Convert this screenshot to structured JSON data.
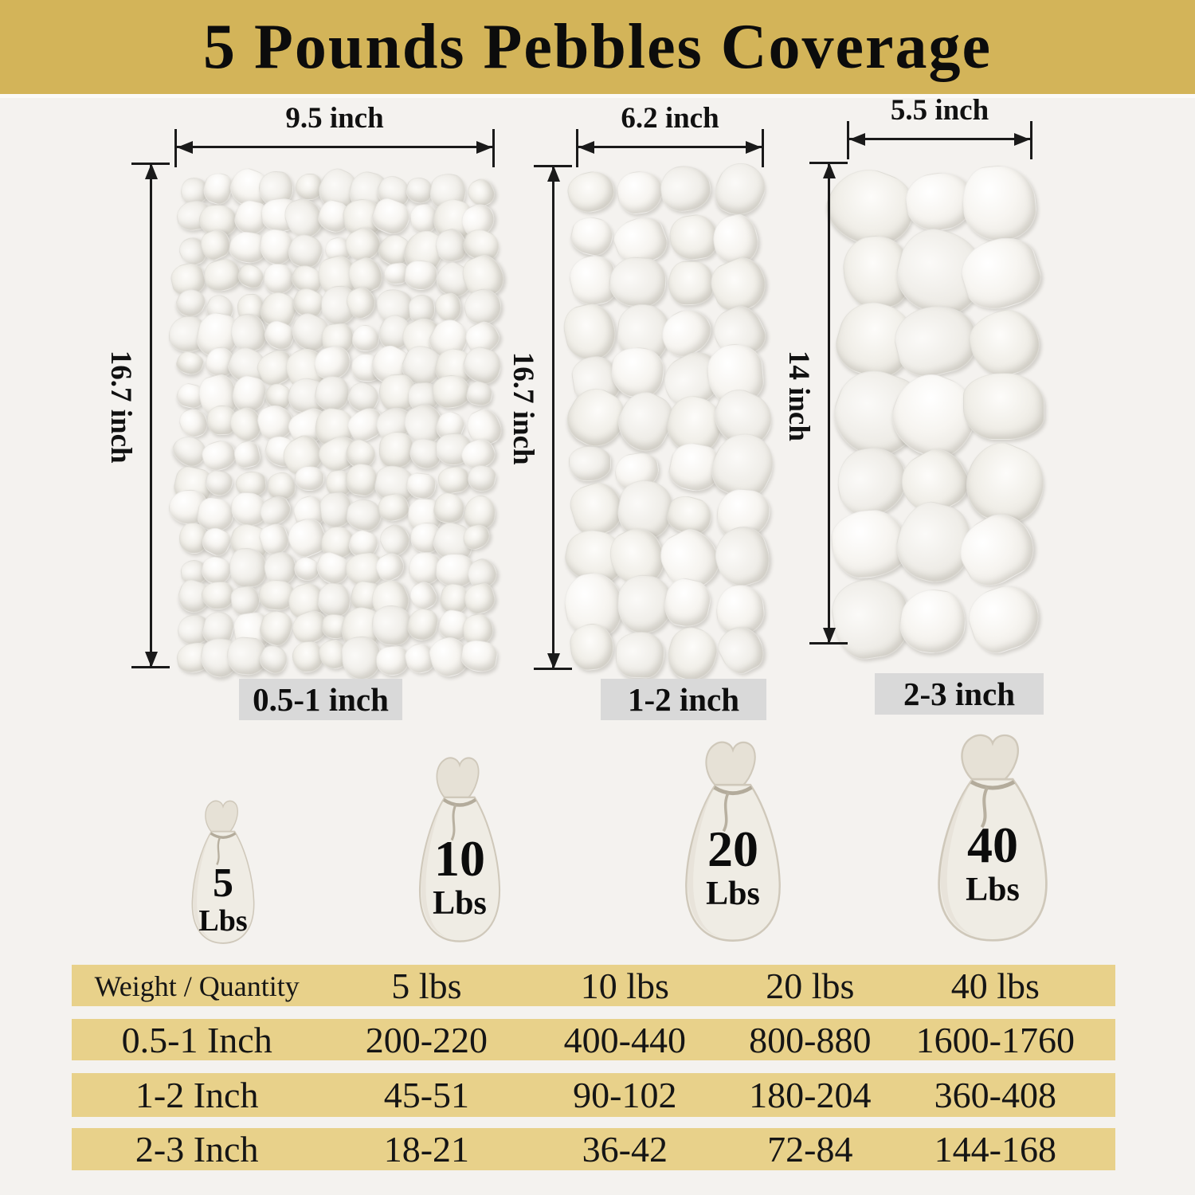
{
  "title": "5 Pounds Pebbles Coverage",
  "panels": [
    {
      "name": "small",
      "width_label": "9.5 inch",
      "height_label": "16.7 inch",
      "size_label": "0.5-1 inch"
    },
    {
      "name": "medium",
      "width_label": "6.2 inch",
      "height_label": "16.7 inch",
      "size_label": "1-2 inch"
    },
    {
      "name": "large",
      "width_label": "5.5 inch",
      "height_label": "14 inch",
      "size_label": "2-3 inch"
    }
  ],
  "bags": [
    {
      "weight": "5",
      "unit": "Lbs"
    },
    {
      "weight": "10",
      "unit": "Lbs"
    },
    {
      "weight": "20",
      "unit": "Lbs"
    },
    {
      "weight": "40",
      "unit": "Lbs"
    }
  ],
  "table": {
    "header": {
      "col0": "Weight / Quantity",
      "col1": "5 lbs",
      "col2": "10 lbs",
      "col3": "20 lbs",
      "col4": "40 lbs"
    },
    "rows": [
      {
        "col0": "0.5-1 Inch",
        "col1": "200-220",
        "col2": "400-440",
        "col3": "800-880",
        "col4": "1600-1760"
      },
      {
        "col0": "1-2 Inch",
        "col1": "45-51",
        "col2": "90-102",
        "col3": "180-204",
        "col4": "360-408"
      },
      {
        "col0": "2-3 Inch",
        "col1": "18-21",
        "col2": "36-42",
        "col3": "72-84",
        "col4": "144-168"
      }
    ]
  },
  "colors": {
    "banner_bg": "#d3b459",
    "table_band_bg": "#e8d18a",
    "page_bg": "#f4f2ef",
    "size_label_bg": "#d9d9d9",
    "text": "#111111"
  },
  "chart_data": {
    "type": "table",
    "title": "5 Pounds Pebbles Coverage",
    "columns": [
      "Weight / Quantity",
      "5 lbs",
      "10 lbs",
      "20 lbs",
      "40 lbs"
    ],
    "rows": [
      [
        "0.5-1 Inch",
        "200-220",
        "400-440",
        "800-880",
        "1600-1760"
      ],
      [
        "1-2 Inch",
        "45-51",
        "90-102",
        "180-204",
        "360-408"
      ],
      [
        "2-3 Inch",
        "18-21",
        "36-42",
        "72-84",
        "144-168"
      ]
    ]
  }
}
